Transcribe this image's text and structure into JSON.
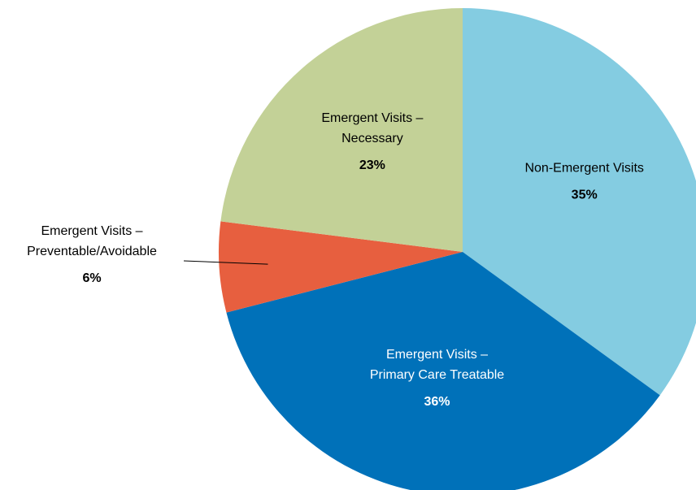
{
  "chart_data": {
    "type": "pie",
    "categories": [
      "Non-Emergent Visits",
      "Emergent Visits – Primary Care Treatable",
      "Emergent Visits – Preventable/Avoidable",
      "Emergent Visits – Necessary"
    ],
    "values": [
      35,
      36,
      6,
      23
    ],
    "value_labels": [
      "35%",
      "36%",
      "6%",
      "23%"
    ],
    "colors": [
      "#84cce1",
      "#0071b9",
      "#e75f3f",
      "#c3d197"
    ]
  }
}
